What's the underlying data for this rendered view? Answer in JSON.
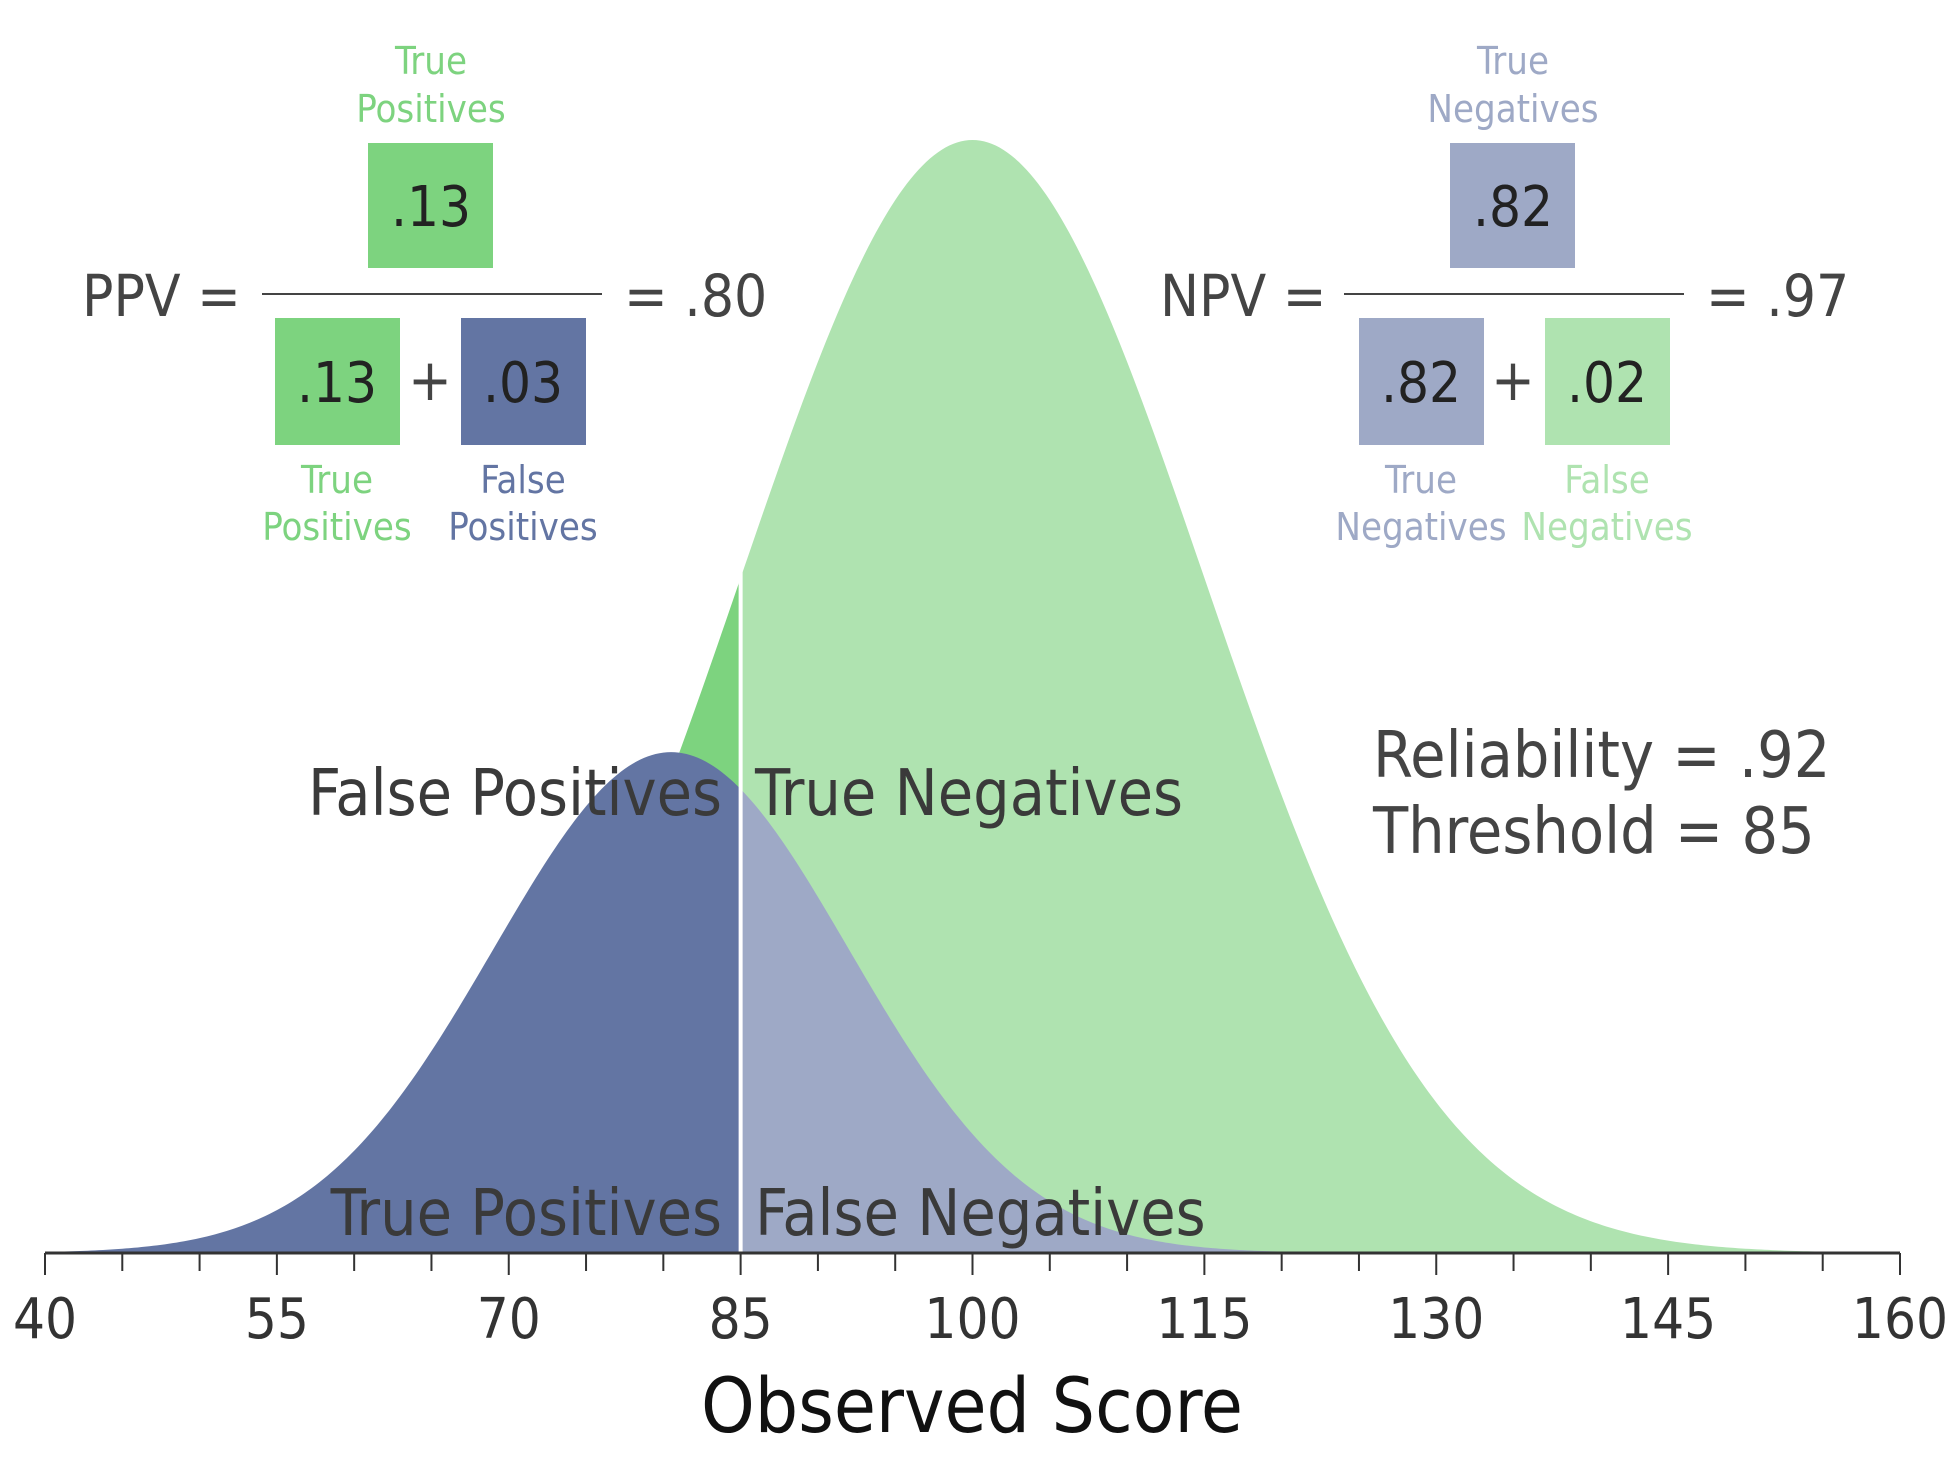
{
  "colors": {
    "tp": "#7dd37f",
    "fp": "#6375a3",
    "tn": "#afe3b0",
    "fn": "#9ea9c6",
    "axis": "#333333"
  },
  "ppv": {
    "label": "PPV =",
    "result": "= .80",
    "numerator": {
      "value": ".13",
      "label_line1": "True",
      "label_line2": "Positives",
      "color": "tp"
    },
    "denominator": [
      {
        "value": ".13",
        "label_line1": "True",
        "label_line2": "Positives",
        "color": "tp"
      },
      {
        "value": ".03",
        "label_line1": "False",
        "label_line2": "Positives",
        "color": "fp"
      }
    ],
    "plus": "+"
  },
  "npv": {
    "label": "NPV =",
    "result": "= .97",
    "numerator": {
      "value": ".82",
      "label_line1": "True",
      "label_line2": "Negatives",
      "color": "fn"
    },
    "denominator": [
      {
        "value": ".82",
        "label_line1": "True",
        "label_line2": "Negatives",
        "color": "fn"
      },
      {
        "value": ".02",
        "label_line1": "False",
        "label_line2": "Negatives",
        "color": "tn"
      }
    ],
    "plus": "+"
  },
  "info": {
    "reliability": "Reliability = .92",
    "threshold": "Threshold = 85"
  },
  "chart_data": {
    "type": "area",
    "xlabel": "Observed Score",
    "xlim": [
      40,
      160
    ],
    "major_ticks": [
      40,
      55,
      70,
      85,
      100,
      115,
      130,
      145,
      160
    ],
    "minor_tick_step": 5,
    "threshold": 85,
    "distributions": {
      "overall": {
        "mean": 100,
        "sd": 15
      },
      "lower_group": {
        "mean": 80.5,
        "sd": 11.5,
        "peak_relative_height": 0.45
      }
    },
    "regions": [
      {
        "key": "fp",
        "label": "False Positives"
      },
      {
        "key": "tn",
        "label": "True Negatives"
      },
      {
        "key": "tp",
        "label": "True Positives"
      },
      {
        "key": "fn",
        "label": "False Negatives"
      }
    ]
  }
}
